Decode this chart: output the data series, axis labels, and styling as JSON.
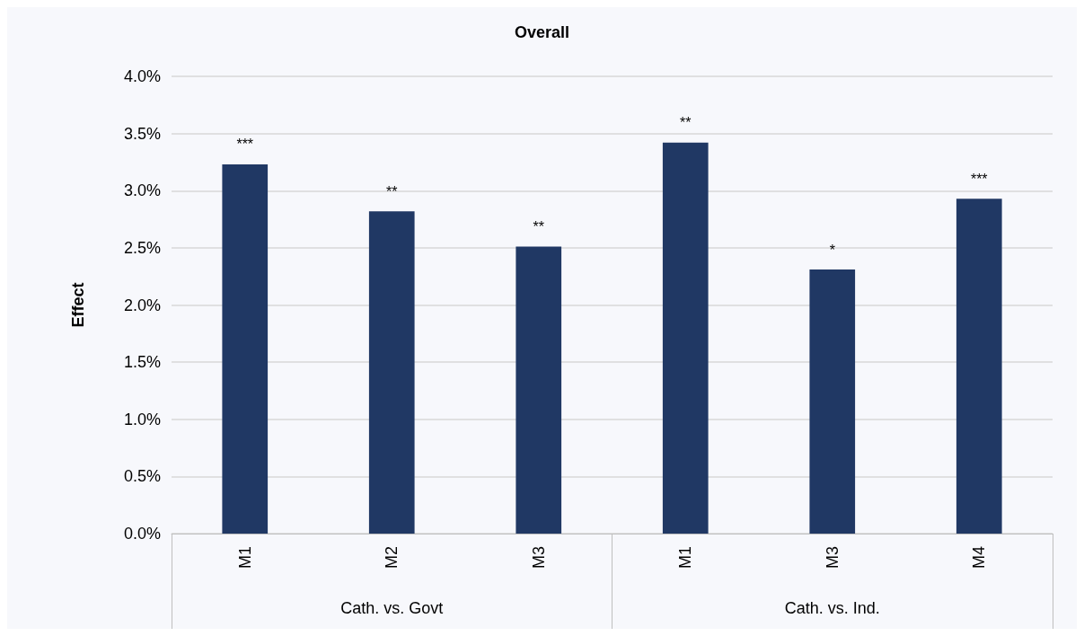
{
  "chart_data": {
    "type": "bar",
    "title": "Overall",
    "ylabel": "Effect",
    "categories": [
      "M1",
      "M2",
      "M3",
      "M1",
      "M3",
      "M4"
    ],
    "values": [
      3.23,
      2.82,
      2.51,
      3.42,
      2.31,
      2.93
    ],
    "value_labels": [
      "***",
      "**",
      "**",
      "**",
      "*",
      "***"
    ],
    "color": "#203864",
    "ylim": [
      0,
      4
    ],
    "yticks": [
      {
        "value": 0,
        "label": "0.0%"
      },
      {
        "value": 0.5,
        "label": "0.5%"
      },
      {
        "value": 1,
        "label": "1.0%"
      },
      {
        "value": 1.5,
        "label": "1.5%"
      },
      {
        "value": 2,
        "label": "2.0%"
      },
      {
        "value": 2.5,
        "label": "2.5%"
      },
      {
        "value": 3,
        "label": "3.0%"
      },
      {
        "value": 3.5,
        "label": "3.5%"
      },
      {
        "value": 4,
        "label": "4.0%"
      }
    ],
    "annotations": [
      "Cath. vs. Govt",
      "Cath. vs. Ind."
    ],
    "grid": "y"
  }
}
